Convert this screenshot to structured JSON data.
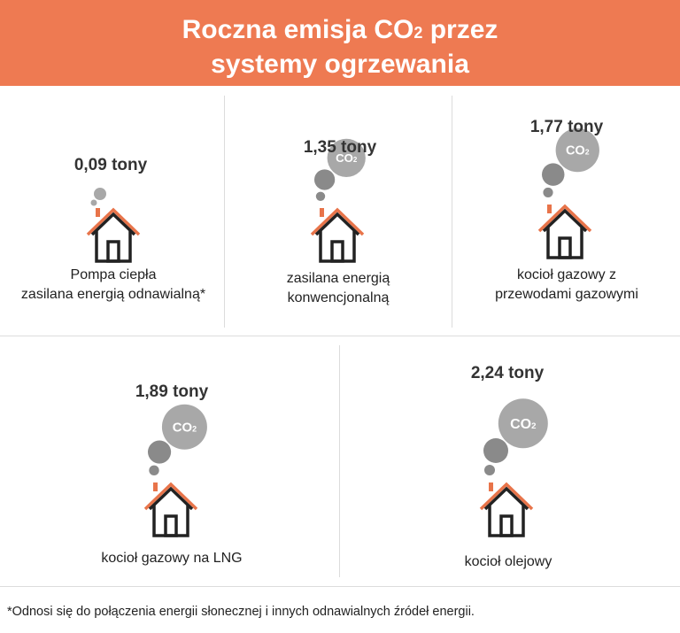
{
  "header": {
    "title_part1": "Roczna emisja CO",
    "title_sub": "2",
    "title_part2": " przez",
    "title_line2": "systemy ogrzewania"
  },
  "co2_badge": {
    "text": "CO",
    "sub": "2"
  },
  "colors": {
    "banner": "#ee7a52",
    "roof": "#e8744a",
    "house": "#222222",
    "smoke_light": "#a8a8a8",
    "smoke_dark": "#8a8a8a"
  },
  "chart_data": {
    "type": "bar",
    "unit": "tony",
    "categories": [
      "Pompa ciepła zasilana energią odnawialną*",
      "zasilana energią konwencjonalną",
      "kocioł gazowy z przewodami gazowymi",
      "kocioł gazowy na LNG",
      "kocioł olejowy"
    ],
    "values": [
      0.09,
      1.35,
      1.77,
      1.89,
      2.24
    ],
    "value_labels": [
      "0,09 tony",
      "1,35 tony",
      "1,77 tony",
      "1,89 tony",
      "2,24 tony"
    ],
    "label_lines": [
      [
        "Pompa ciepła",
        "zasilana energią odnawialną*"
      ],
      [
        "zasilana energią",
        "konwencjonalną"
      ],
      [
        "kocioł gazowy z",
        "przewodami gazowymi"
      ],
      [
        "kocioł gazowy na LNG"
      ],
      [
        "kocioł olejowy"
      ]
    ]
  },
  "footnote": "*Odnosi się do połączenia energii słonecznej i innych odnawialnych źródeł energii."
}
